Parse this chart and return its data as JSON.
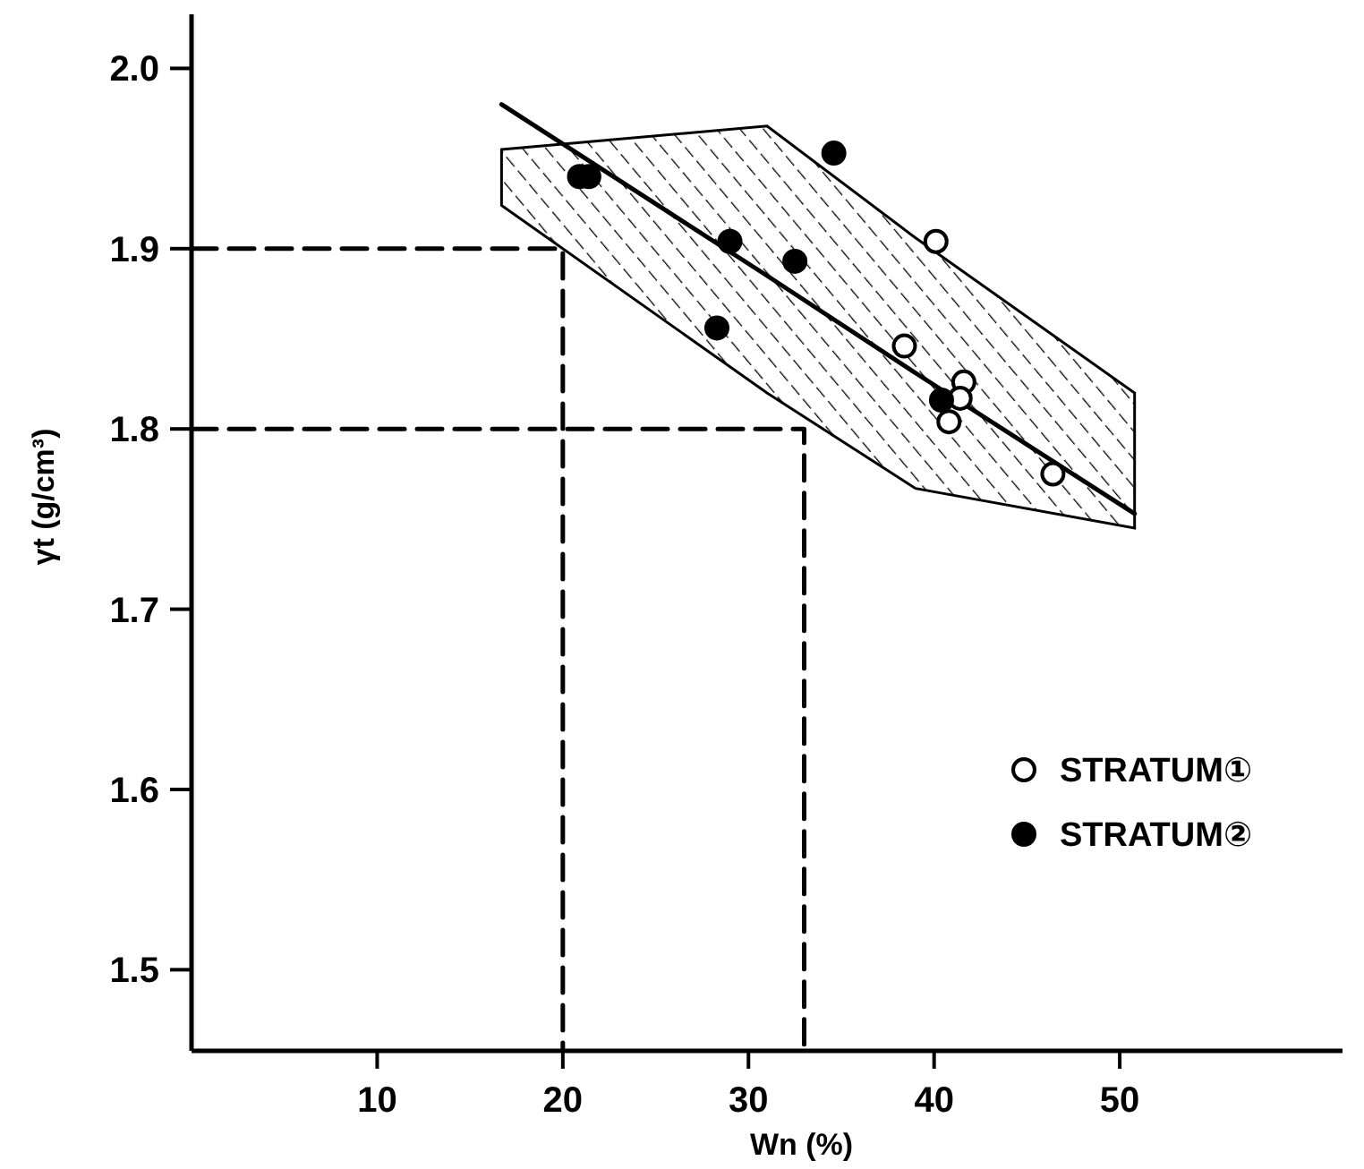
{
  "chart_data": {
    "type": "scatter",
    "xlabel": "Wn (%)",
    "ylabel": "γt (g/cm³)",
    "xlim": [
      0,
      62
    ],
    "ylim": [
      1.455,
      2.03
    ],
    "xticks": [
      10,
      20,
      30,
      40,
      50
    ],
    "yticks": [
      1.5,
      1.6,
      1.7,
      1.8,
      1.9,
      {
        "value": 2,
        "label": "2.0"
      }
    ],
    "legend": "right",
    "marker": "circle",
    "grid": false,
    "series": [
      {
        "type": "line",
        "x": [
          16.7,
          31,
          39,
          50.8
        ],
        "values": [
          1.98,
          1.885,
          1.831,
          1.753
        ],
        "lower": [
          1.924,
          1.82,
          1.767,
          1.745
        ],
        "upper": [
          1.955,
          1.968,
          1.906,
          1.82
        ],
        "color": "#000000",
        "marker": "none",
        "line_style": "solid"
      },
      {
        "type": "line",
        "x": [
          0,
          20,
          20
        ],
        "values": [
          1.9,
          1.9,
          1.455
        ],
        "color": "#000000",
        "marker": "none",
        "line_style": "dashed"
      },
      {
        "type": "line",
        "x": [
          0,
          33,
          33
        ],
        "values": [
          1.8,
          1.8,
          1.455
        ],
        "color": "#000000",
        "marker": "none",
        "line_style": "dashed"
      },
      {
        "name": "STRATUM①",
        "x": [
          40.1,
          38.4,
          41.6,
          41.4,
          40.8,
          46.4
        ],
        "values": [
          1.904,
          1.846,
          1.826,
          1.817,
          1.804,
          1.775
        ],
        "color": "#ffffff"
      },
      {
        "name": "STRATUM②",
        "x": [
          20.9,
          21.4,
          34.6,
          29.0,
          32.5,
          28.3,
          40.4
        ],
        "values": [
          1.94,
          1.94,
          1.953,
          1.904,
          1.893,
          1.856,
          1.816
        ],
        "color": "#000000"
      }
    ]
  }
}
